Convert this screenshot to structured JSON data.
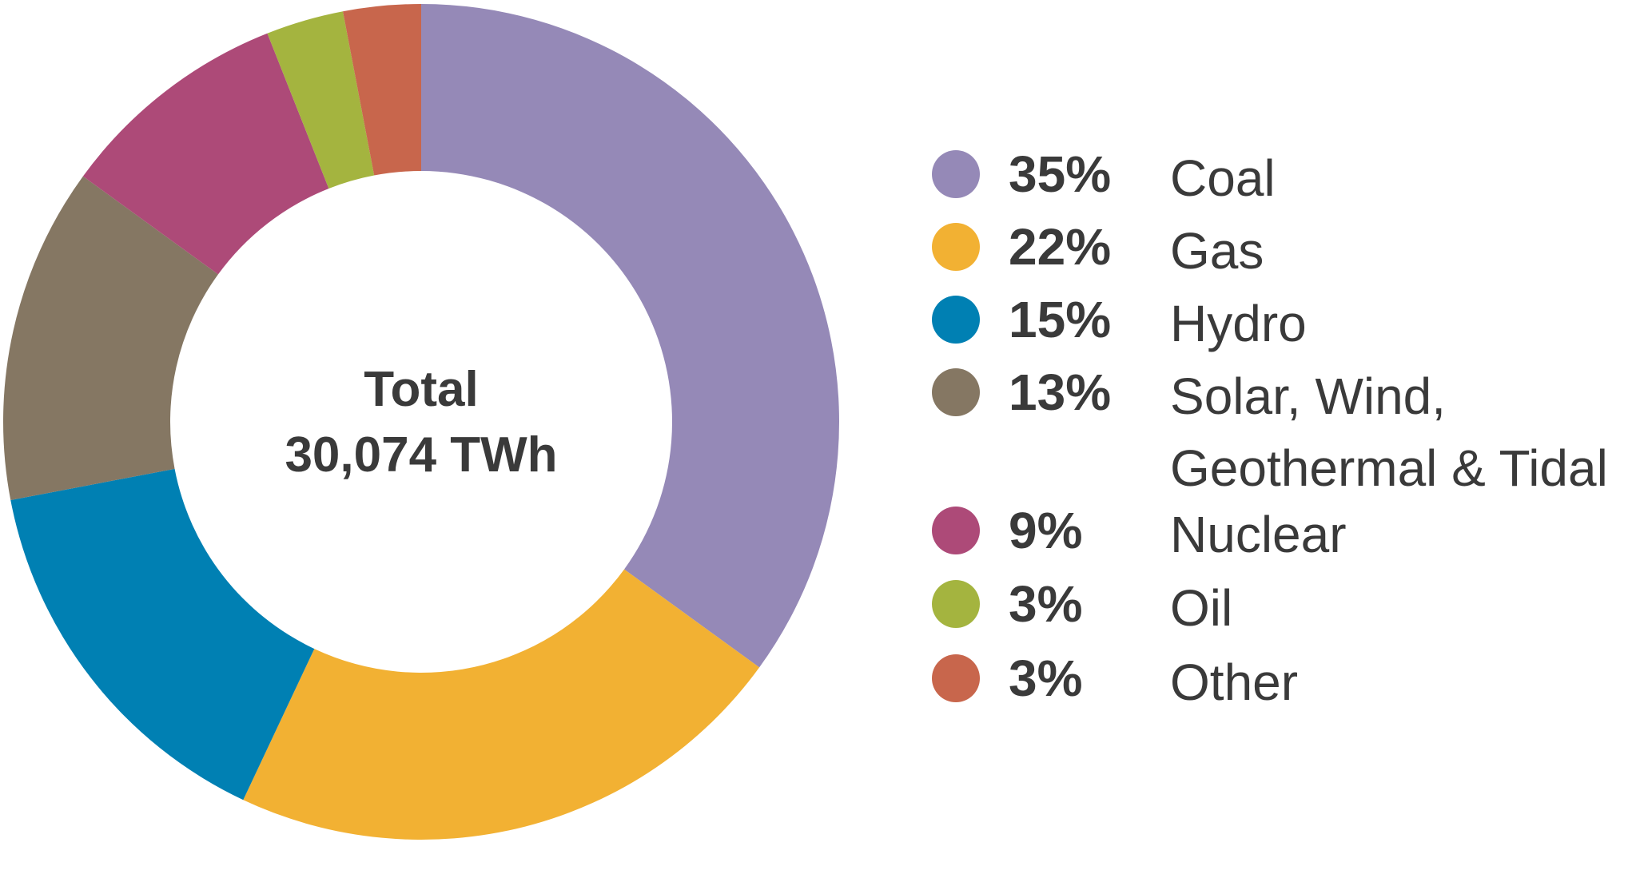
{
  "chart_data": {
    "type": "pie",
    "style": "donut",
    "center_label": {
      "title": "Total",
      "value": "30,074 TWh"
    },
    "legend_placement": "right",
    "slices": [
      {
        "label": "Coal",
        "percent_label": "35%",
        "value": 35,
        "color": "#9589b7"
      },
      {
        "label": "Gas",
        "percent_label": "22%",
        "value": 22,
        "color": "#f2b133"
      },
      {
        "label": "Hydro",
        "percent_label": "15%",
        "value": 15,
        "color": "#0080b3"
      },
      {
        "label": "Solar, Wind,\nGeothermal & Tidal",
        "percent_label": "13%",
        "value": 13,
        "color": "#857763"
      },
      {
        "label": "Nuclear",
        "percent_label": "9%",
        "value": 9,
        "color": "#ad4a78"
      },
      {
        "label": "Oil",
        "percent_label": "3%",
        "value": 3,
        "color": "#a4b43f"
      },
      {
        "label": "Other",
        "percent_label": "3%",
        "value": 3,
        "color": "#c8664c"
      }
    ]
  }
}
